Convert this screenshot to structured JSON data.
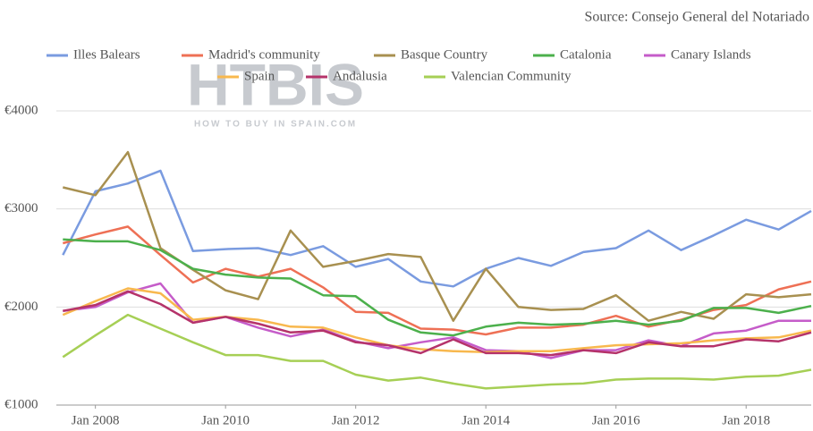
{
  "chart_data": {
    "type": "line",
    "source": "Source: Consejo General del Notariado",
    "watermark": "HTBIS",
    "watermark_subtitle": "HOW TO BUY IN SPAIN.COM",
    "x": [
      2007.5,
      2008.0,
      2008.5,
      2009.0,
      2009.5,
      2010.0,
      2010.5,
      2011.0,
      2011.5,
      2012.0,
      2012.5,
      2013.0,
      2013.5,
      2014.0,
      2014.5,
      2015.0,
      2015.5,
      2016.0,
      2016.5,
      2017.0,
      2017.5,
      2018.0,
      2018.5,
      2019.0
    ],
    "xlim": [
      2007.4,
      2019.0
    ],
    "xticks": [
      {
        "value": 2008,
        "label": "Jan 2008"
      },
      {
        "value": 2010,
        "label": "Jan 2010"
      },
      {
        "value": 2012,
        "label": "Jan 2012"
      },
      {
        "value": 2014,
        "label": "Jan 2014"
      },
      {
        "value": 2016,
        "label": "Jan 2016"
      },
      {
        "value": 2018,
        "label": "Jan 2018"
      }
    ],
    "ylim": [
      1000,
      4000
    ],
    "yticks": [
      {
        "value": 1000,
        "label": "€1000"
      },
      {
        "value": 2000,
        "label": "€2000"
      },
      {
        "value": 3000,
        "label": "€3000"
      },
      {
        "value": 4000,
        "label": "€4000"
      }
    ],
    "grid": true,
    "series": [
      {
        "name": "Illes Balears",
        "color": "#7a9be0",
        "values": [
          2530,
          3180,
          3260,
          3390,
          2570,
          2590,
          2600,
          2530,
          2620,
          2410,
          2490,
          2260,
          2210,
          2390,
          2500,
          2420,
          2560,
          2600,
          2780,
          2580,
          2730,
          2890,
          2790,
          2980
        ]
      },
      {
        "name": "Madrid's community",
        "color": "#ee7055",
        "values": [
          2650,
          2740,
          2820,
          2530,
          2250,
          2390,
          2310,
          2390,
          2200,
          1950,
          1940,
          1780,
          1770,
          1720,
          1790,
          1790,
          1820,
          1910,
          1800,
          1870,
          1970,
          2020,
          2180,
          2260
        ]
      },
      {
        "name": "Basque Country",
        "color": "#a89050",
        "values": [
          3220,
          3140,
          3580,
          2600,
          2380,
          2170,
          2080,
          2780,
          2410,
          2470,
          2540,
          2510,
          1860,
          2390,
          2000,
          1970,
          1980,
          2120,
          1860,
          1950,
          1880,
          2130,
          2100,
          2130
        ]
      },
      {
        "name": "Catalonia",
        "color": "#4cb04c",
        "values": [
          2690,
          2670,
          2670,
          2580,
          2390,
          2330,
          2300,
          2290,
          2120,
          2110,
          1870,
          1740,
          1710,
          1800,
          1840,
          1820,
          1830,
          1860,
          1820,
          1860,
          1990,
          1990,
          1940,
          2010
        ]
      },
      {
        "name": "Canary Islands",
        "color": "#c55cc9",
        "values": [
          1960,
          2000,
          2150,
          2240,
          1840,
          1900,
          1790,
          1700,
          1770,
          1650,
          1580,
          1640,
          1690,
          1560,
          1550,
          1480,
          1560,
          1560,
          1660,
          1600,
          1730,
          1760,
          1860,
          1860
        ]
      },
      {
        "name": "Spain",
        "color": "#f8b84e",
        "values": [
          1920,
          2060,
          2190,
          2140,
          1870,
          1900,
          1870,
          1800,
          1790,
          1690,
          1610,
          1570,
          1550,
          1540,
          1550,
          1550,
          1580,
          1610,
          1620,
          1630,
          1660,
          1680,
          1690,
          1760
        ]
      },
      {
        "name": "Andalusia",
        "color": "#b5336a",
        "values": [
          1960,
          2020,
          2160,
          2030,
          1840,
          1900,
          1830,
          1740,
          1760,
          1640,
          1610,
          1530,
          1670,
          1530,
          1530,
          1510,
          1560,
          1530,
          1640,
          1600,
          1600,
          1670,
          1650,
          1740
        ]
      },
      {
        "name": "Valencian Community",
        "color": "#a6cf55",
        "values": [
          1490,
          1710,
          1920,
          1780,
          1640,
          1510,
          1510,
          1450,
          1450,
          1310,
          1250,
          1280,
          1220,
          1170,
          1190,
          1210,
          1220,
          1260,
          1270,
          1270,
          1260,
          1290,
          1300,
          1360
        ]
      }
    ]
  }
}
